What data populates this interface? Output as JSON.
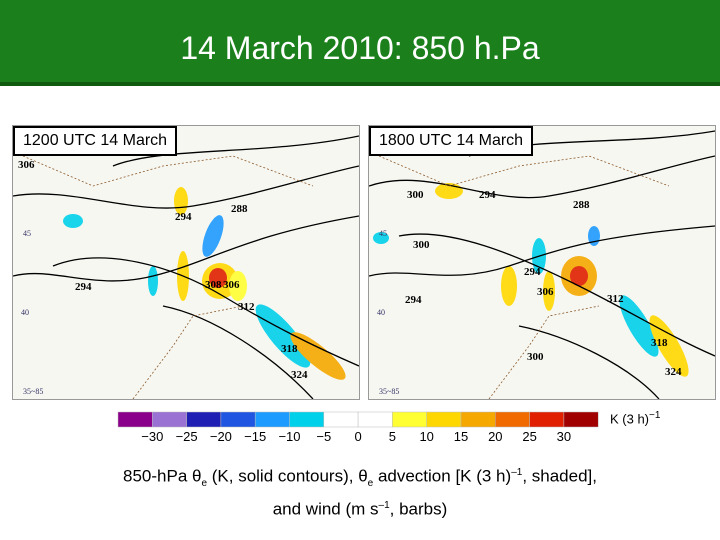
{
  "header": {
    "title": "14 March 2010: 850 h.Pa"
  },
  "panels": [
    {
      "label": "1200 UTC 14 March",
      "contour_labels": [
        "306",
        "294",
        "288",
        "294",
        "308",
        "306",
        "312",
        "318",
        "324"
      ],
      "grid_labels": [
        "45",
        "40",
        "35~85"
      ]
    },
    {
      "label": "1800 UTC 14 March",
      "contour_labels": [
        "300",
        "294",
        "288",
        "300",
        "294",
        "294",
        "306",
        "312",
        "318",
        "300",
        "324"
      ],
      "grid_labels": [
        "45",
        "40",
        "35~85"
      ]
    }
  ],
  "colorbar": {
    "colors": [
      "#8b008b",
      "#9a72d4",
      "#1f1fb4",
      "#1f55e0",
      "#1e9bff",
      "#00d0ea",
      "#ffffff",
      "#ffffff",
      "#ffff33",
      "#ffd700",
      "#f5a800",
      "#f06a00",
      "#e02000",
      "#a00000"
    ],
    "tick_labels": [
      "−30",
      "−25",
      "−20",
      "−15",
      "−10",
      "−5",
      "0",
      "5",
      "10",
      "15",
      "20",
      "25",
      "30"
    ],
    "unit": [
      "K (3 h)",
      "−1"
    ]
  },
  "caption": {
    "line1": [
      "850-hPa θ",
      "e",
      " (K, solid contours), θ",
      "e",
      " advection [K (3 h)",
      "–1",
      ", shaded],"
    ],
    "line2": [
      "and wind (m s",
      "–1",
      ", barbs)"
    ]
  }
}
